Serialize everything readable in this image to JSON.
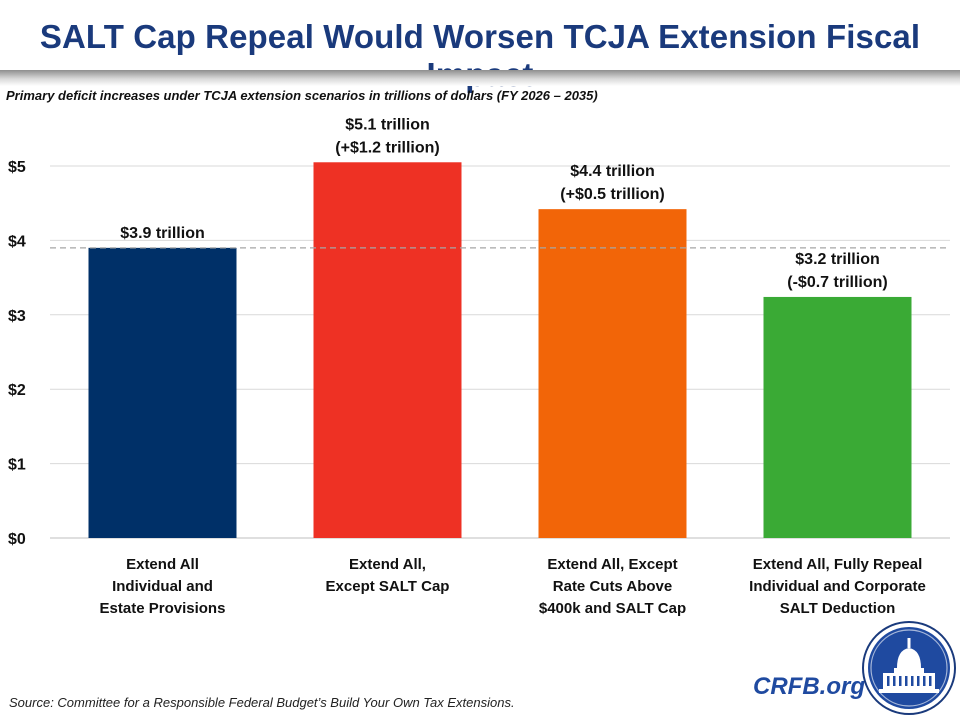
{
  "title": "SALT Cap Repeal Would Worsen TCJA Extension Fiscal Impact",
  "subtitle": "Primary deficit increases under TCJA extension scenarios in trillions of dollars (FY 2026 – 2035)",
  "source": "Source: Committee for a Responsible Federal Budget’s Build Your Own Tax Extensions.",
  "brand": "CRFB.org",
  "chart_data": {
    "type": "bar",
    "title": "SALT Cap Repeal Would Worsen TCJA Extension Fiscal Impact",
    "subtitle": "Primary deficit increases under TCJA extension scenarios in trillions of dollars (FY 2026 – 2035)",
    "xlabel": "",
    "ylabel": "",
    "ylim": [
      0,
      5
    ],
    "yticks": [
      0,
      1,
      2,
      3,
      4,
      5
    ],
    "ytick_labels": [
      "$0",
      "$1",
      "$2",
      "$3",
      "$4",
      "$5"
    ],
    "grid": true,
    "reference_line": {
      "value": 3.9,
      "style": "dashed"
    },
    "categories": [
      [
        "Extend All",
        "Individual and",
        "Estate Provisions"
      ],
      [
        "Extend All,",
        "Except SALT Cap"
      ],
      [
        "Extend All, Except",
        "Rate Cuts Above",
        "$400k and SALT Cap"
      ],
      [
        "Extend All, Fully Repeal",
        "Individual and Corporate",
        "SALT Deduction"
      ]
    ],
    "values": [
      3.9,
      5.05,
      4.42,
      3.24
    ],
    "data_labels": [
      [
        "$3.9 trillion"
      ],
      [
        "$5.1 trillion",
        "(+$1.2 trillion)"
      ],
      [
        "$4.4 trillion",
        "(+$0.5 trillion)"
      ],
      [
        "$3.2 trillion",
        "(-$0.7 trillion)"
      ]
    ],
    "colors": [
      "#003068",
      "#ee3124",
      "#f26508",
      "#3aaa35"
    ]
  }
}
